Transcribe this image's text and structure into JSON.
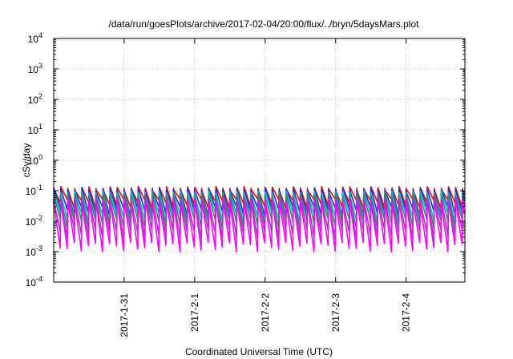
{
  "chart_data": {
    "type": "line",
    "title": "/data/run/goesPlots/archive/2017-02-04/20:00/flux/../bryn/5daysMars.plot",
    "xlabel": "Coordinated Universal Time (UTC)",
    "ylabel": "cSv/day",
    "yscale": "log",
    "ylim": [
      0.0001,
      10000
    ],
    "y_ticks": [
      {
        "base": "10",
        "exp": "-4"
      },
      {
        "base": "10",
        "exp": "-3"
      },
      {
        "base": "10",
        "exp": "-2"
      },
      {
        "base": "10",
        "exp": "-1"
      },
      {
        "base": "10",
        "exp": "0"
      },
      {
        "base": "10",
        "exp": "1"
      },
      {
        "base": "10",
        "exp": "2"
      },
      {
        "base": "10",
        "exp": "3"
      },
      {
        "base": "10",
        "exp": "4"
      }
    ],
    "xlim": [
      "2017-01-30T00:00",
      "2017-02-04T20:00"
    ],
    "x_ticks": [
      "2017-1-31",
      "2017-2-1",
      "2017-2-2",
      "2017-2-3",
      "2017-2-4"
    ],
    "grid": true,
    "period_hours": 2.4,
    "series": [
      {
        "color": "#ff0000",
        "peak": 0.12,
        "trough": 0.04
      },
      {
        "color": "#2a2ad0",
        "peak": 0.11,
        "trough": 0.022
      },
      {
        "color": "#00c0e0",
        "peak": 0.085,
        "trough": 0.014
      },
      {
        "color": "#1a9a50",
        "peak": 0.07,
        "trough": 0.009
      },
      {
        "color": "#9a40c0",
        "peak": 0.055,
        "trough": 0.004
      },
      {
        "color": "#ff00ff",
        "peak": 0.045,
        "trough": 0.0015
      }
    ]
  },
  "colors": {
    "grid": "#b0b0b0",
    "axis": "#000000"
  }
}
